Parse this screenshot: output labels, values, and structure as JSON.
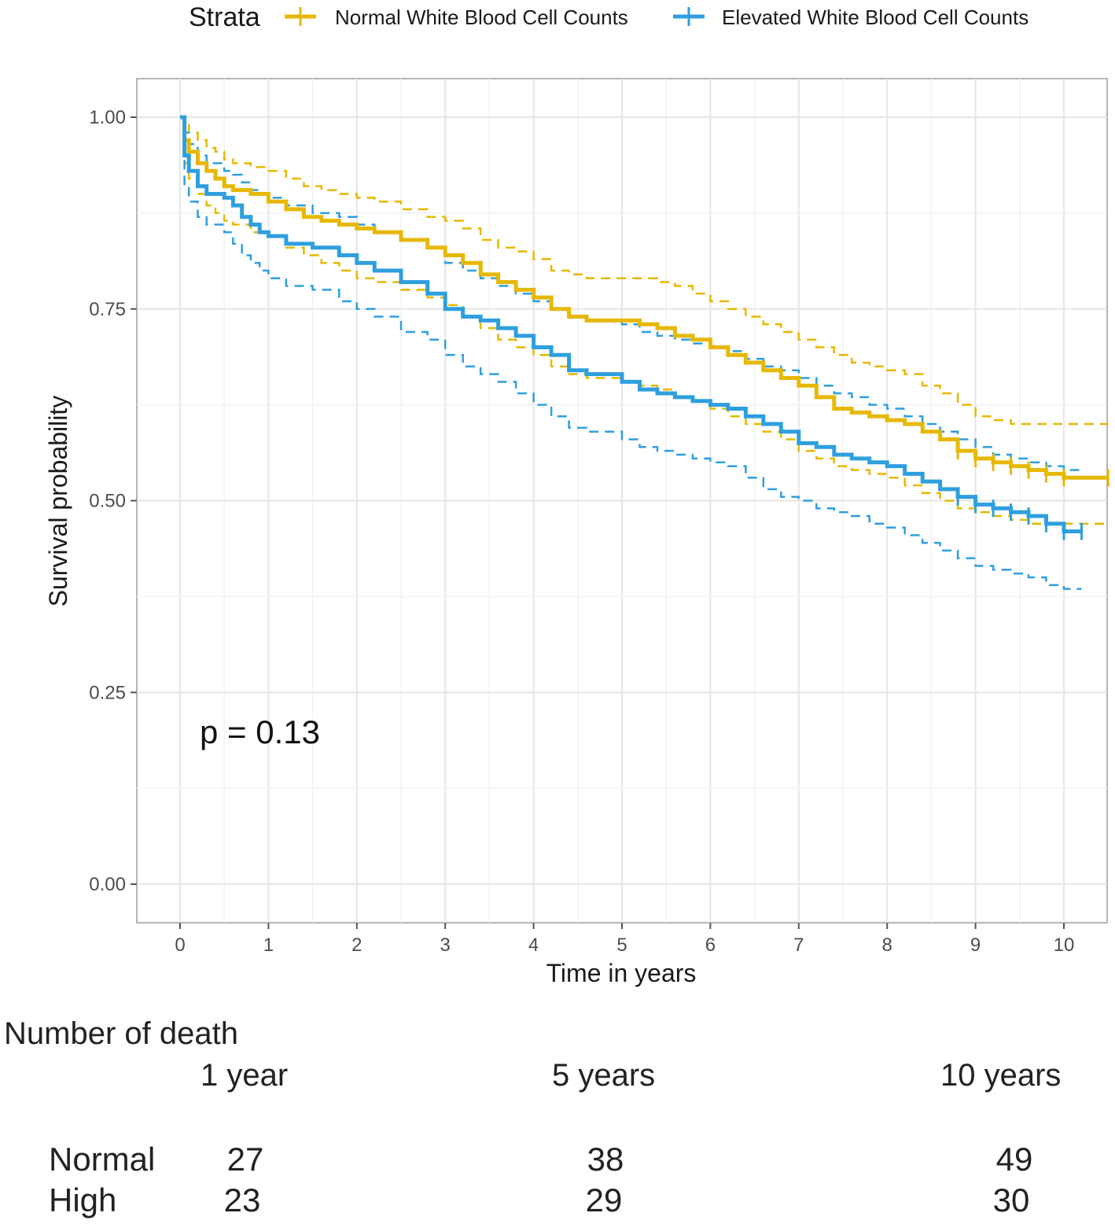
{
  "chart_data": {
    "type": "line",
    "subtype": "kaplan-meier",
    "xlabel": "Time in years",
    "ylabel": "Survival probability",
    "xlim": [
      0,
      10.5
    ],
    "ylim": [
      0,
      1
    ],
    "xticks": [
      "0",
      "1",
      "2",
      "3",
      "4",
      "5",
      "6",
      "7",
      "8",
      "9",
      "10"
    ],
    "yticks": [
      "0.00",
      "0.25",
      "0.50",
      "0.75",
      "1.00"
    ],
    "grid": true,
    "legend": {
      "title": "Strata",
      "placement": "top"
    },
    "annotation": "p = 0.13",
    "series": [
      {
        "name": "Normal White Blood Cell Counts",
        "color": "#E7B800",
        "x": [
          0,
          0.05,
          0.1,
          0.2,
          0.3,
          0.4,
          0.5,
          0.6,
          0.8,
          1,
          1.2,
          1.4,
          1.6,
          1.8,
          2,
          2.2,
          2.5,
          2.8,
          3,
          3.2,
          3.4,
          3.6,
          3.8,
          4,
          4.2,
          4.4,
          4.6,
          5,
          5.2,
          5.4,
          5.6,
          5.8,
          6,
          6.2,
          6.4,
          6.6,
          6.8,
          7,
          7.2,
          7.4,
          7.6,
          7.8,
          8,
          8.2,
          8.4,
          8.6,
          8.8,
          9,
          9.2,
          9.4,
          9.6,
          9.8,
          10,
          10.5
        ],
        "y": [
          1,
          0.97,
          0.955,
          0.94,
          0.93,
          0.92,
          0.91,
          0.905,
          0.9,
          0.89,
          0.88,
          0.87,
          0.865,
          0.86,
          0.855,
          0.85,
          0.84,
          0.83,
          0.82,
          0.81,
          0.795,
          0.785,
          0.775,
          0.765,
          0.75,
          0.74,
          0.735,
          0.735,
          0.73,
          0.725,
          0.715,
          0.71,
          0.7,
          0.69,
          0.68,
          0.67,
          0.66,
          0.65,
          0.635,
          0.62,
          0.615,
          0.61,
          0.605,
          0.6,
          0.59,
          0.58,
          0.565,
          0.555,
          0.55,
          0.545,
          0.54,
          0.535,
          0.53,
          0.53
        ],
        "lower": [
          1,
          0.94,
          0.92,
          0.9,
          0.885,
          0.875,
          0.865,
          0.86,
          0.85,
          0.845,
          0.83,
          0.82,
          0.81,
          0.8,
          0.79,
          0.785,
          0.775,
          0.765,
          0.755,
          0.74,
          0.725,
          0.71,
          0.7,
          0.69,
          0.675,
          0.665,
          0.66,
          0.655,
          0.65,
          0.645,
          0.635,
          0.63,
          0.62,
          0.61,
          0.6,
          0.59,
          0.58,
          0.565,
          0.555,
          0.545,
          0.54,
          0.535,
          0.53,
          0.52,
          0.51,
          0.5,
          0.49,
          0.485,
          0.48,
          0.475,
          0.47,
          0.47,
          0.47,
          0.47
        ],
        "upper": [
          1,
          0.99,
          0.98,
          0.97,
          0.96,
          0.955,
          0.945,
          0.94,
          0.935,
          0.93,
          0.92,
          0.91,
          0.905,
          0.9,
          0.895,
          0.89,
          0.88,
          0.87,
          0.865,
          0.855,
          0.84,
          0.83,
          0.825,
          0.815,
          0.8,
          0.795,
          0.79,
          0.79,
          0.79,
          0.785,
          0.78,
          0.77,
          0.76,
          0.75,
          0.74,
          0.73,
          0.72,
          0.71,
          0.7,
          0.69,
          0.68,
          0.675,
          0.67,
          0.665,
          0.65,
          0.64,
          0.625,
          0.61,
          0.605,
          0.6,
          0.6,
          0.6,
          0.6,
          0.6
        ]
      },
      {
        "name": "Elevated White Blood Cell Counts",
        "color": "#2E9FDF",
        "x": [
          0,
          0.05,
          0.1,
          0.2,
          0.3,
          0.5,
          0.6,
          0.7,
          0.8,
          0.9,
          1,
          1.2,
          1.5,
          1.8,
          2,
          2.2,
          2.5,
          2.8,
          3,
          3.2,
          3.4,
          3.6,
          3.8,
          4,
          4.2,
          4.4,
          4.6,
          5,
          5.2,
          5.4,
          5.6,
          5.8,
          6,
          6.2,
          6.4,
          6.6,
          6.8,
          7,
          7.2,
          7.4,
          7.6,
          7.8,
          8,
          8.2,
          8.4,
          8.6,
          8.8,
          9,
          9.2,
          9.4,
          9.6,
          9.8,
          10,
          10.2
        ],
        "y": [
          1,
          0.95,
          0.93,
          0.91,
          0.9,
          0.895,
          0.885,
          0.87,
          0.86,
          0.85,
          0.845,
          0.835,
          0.83,
          0.82,
          0.81,
          0.8,
          0.785,
          0.77,
          0.75,
          0.74,
          0.735,
          0.725,
          0.715,
          0.7,
          0.69,
          0.67,
          0.665,
          0.655,
          0.645,
          0.64,
          0.635,
          0.63,
          0.625,
          0.62,
          0.61,
          0.6,
          0.59,
          0.575,
          0.57,
          0.56,
          0.555,
          0.55,
          0.545,
          0.535,
          0.525,
          0.515,
          0.505,
          0.495,
          0.49,
          0.485,
          0.48,
          0.47,
          0.46,
          0.46
        ],
        "lower": [
          1,
          0.91,
          0.89,
          0.87,
          0.86,
          0.85,
          0.835,
          0.82,
          0.81,
          0.8,
          0.79,
          0.78,
          0.775,
          0.76,
          0.75,
          0.74,
          0.72,
          0.71,
          0.69,
          0.675,
          0.665,
          0.655,
          0.64,
          0.625,
          0.61,
          0.595,
          0.59,
          0.58,
          0.57,
          0.565,
          0.56,
          0.555,
          0.55,
          0.545,
          0.53,
          0.515,
          0.505,
          0.5,
          0.49,
          0.485,
          0.48,
          0.47,
          0.465,
          0.455,
          0.445,
          0.435,
          0.425,
          0.415,
          0.41,
          0.405,
          0.4,
          0.39,
          0.385,
          0.385
        ],
        "upper": [
          1,
          0.98,
          0.965,
          0.95,
          0.94,
          0.93,
          0.925,
          0.915,
          0.905,
          0.9,
          0.895,
          0.885,
          0.875,
          0.87,
          0.86,
          0.85,
          0.84,
          0.83,
          0.81,
          0.8,
          0.79,
          0.78,
          0.77,
          0.76,
          0.75,
          0.74,
          0.735,
          0.73,
          0.72,
          0.715,
          0.71,
          0.705,
          0.7,
          0.695,
          0.685,
          0.675,
          0.67,
          0.66,
          0.65,
          0.64,
          0.635,
          0.625,
          0.62,
          0.61,
          0.6,
          0.59,
          0.58,
          0.57,
          0.56,
          0.555,
          0.55,
          0.545,
          0.54,
          0.54
        ]
      }
    ]
  },
  "risk_table": {
    "title": "Number of death",
    "columns": [
      "1 year",
      "5 years",
      "10 years"
    ],
    "rows": [
      {
        "label": "Normal",
        "values": [
          "27",
          "38",
          "49"
        ]
      },
      {
        "label": "High",
        "values": [
          "23",
          "29",
          "30"
        ]
      }
    ]
  }
}
